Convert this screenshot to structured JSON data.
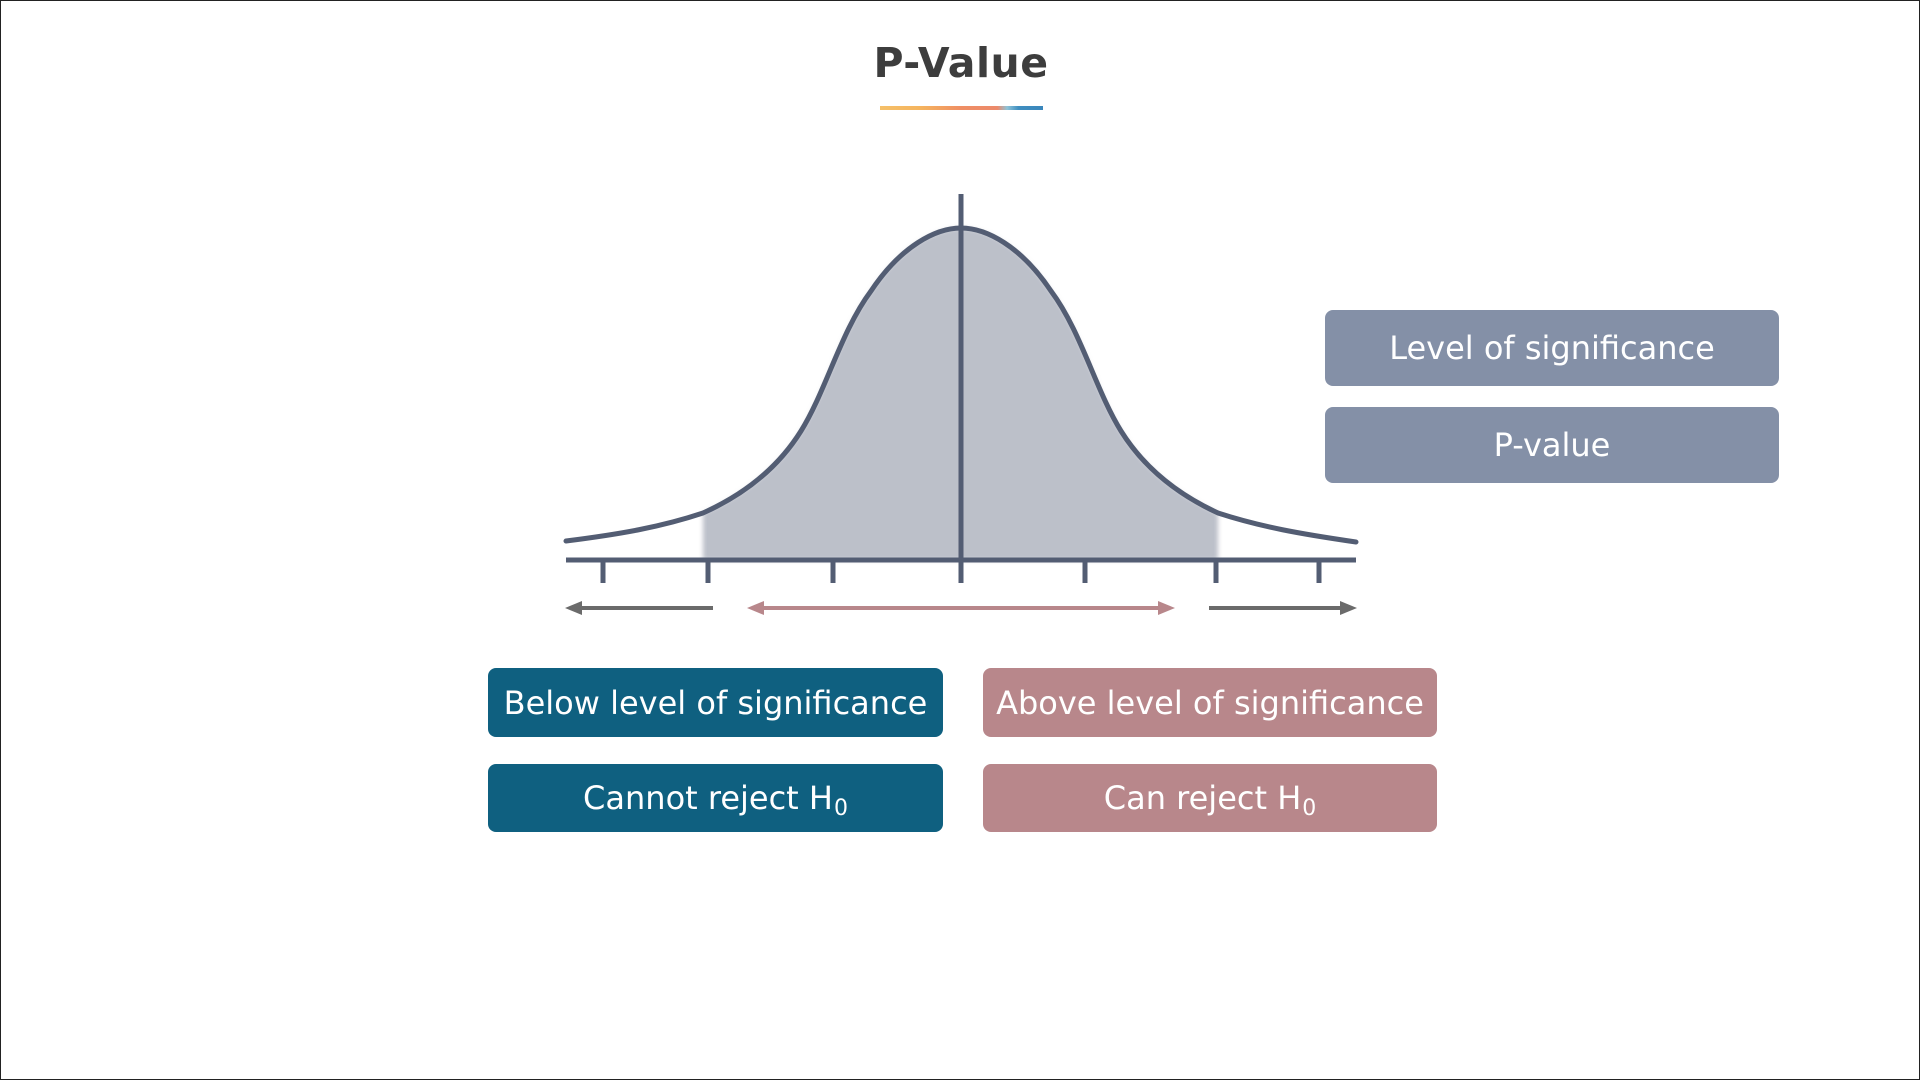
{
  "slide": {
    "title": "P-Value",
    "underline_colors": [
      "#f5c069",
      "#ef8e64",
      "#8ec3d8",
      "#3a86bb"
    ]
  },
  "legend": {
    "level_of_significance": "Level of significance",
    "p_value": "P-value",
    "color": "#8490a7"
  },
  "outcomes": {
    "below": {
      "label": "Below level of significance",
      "color": "#0f6080"
    },
    "above": {
      "label": "Above level of significance",
      "color": "#b8878b"
    },
    "cannot_reject": {
      "text": "Cannot reject H",
      "subscript": "0",
      "color": "#0f6080"
    },
    "can_reject": {
      "text": "Can reject H",
      "subscript": "0",
      "color": "#b8878b"
    }
  },
  "diagram": {
    "curve_color": "#535d73",
    "fill_color": "#bcc0c9",
    "axis_color": "#535d73",
    "arrow_left_color": "#6b6b6b",
    "arrow_middle_color": "#b8878b",
    "arrow_right_color": "#6b6b6b"
  }
}
